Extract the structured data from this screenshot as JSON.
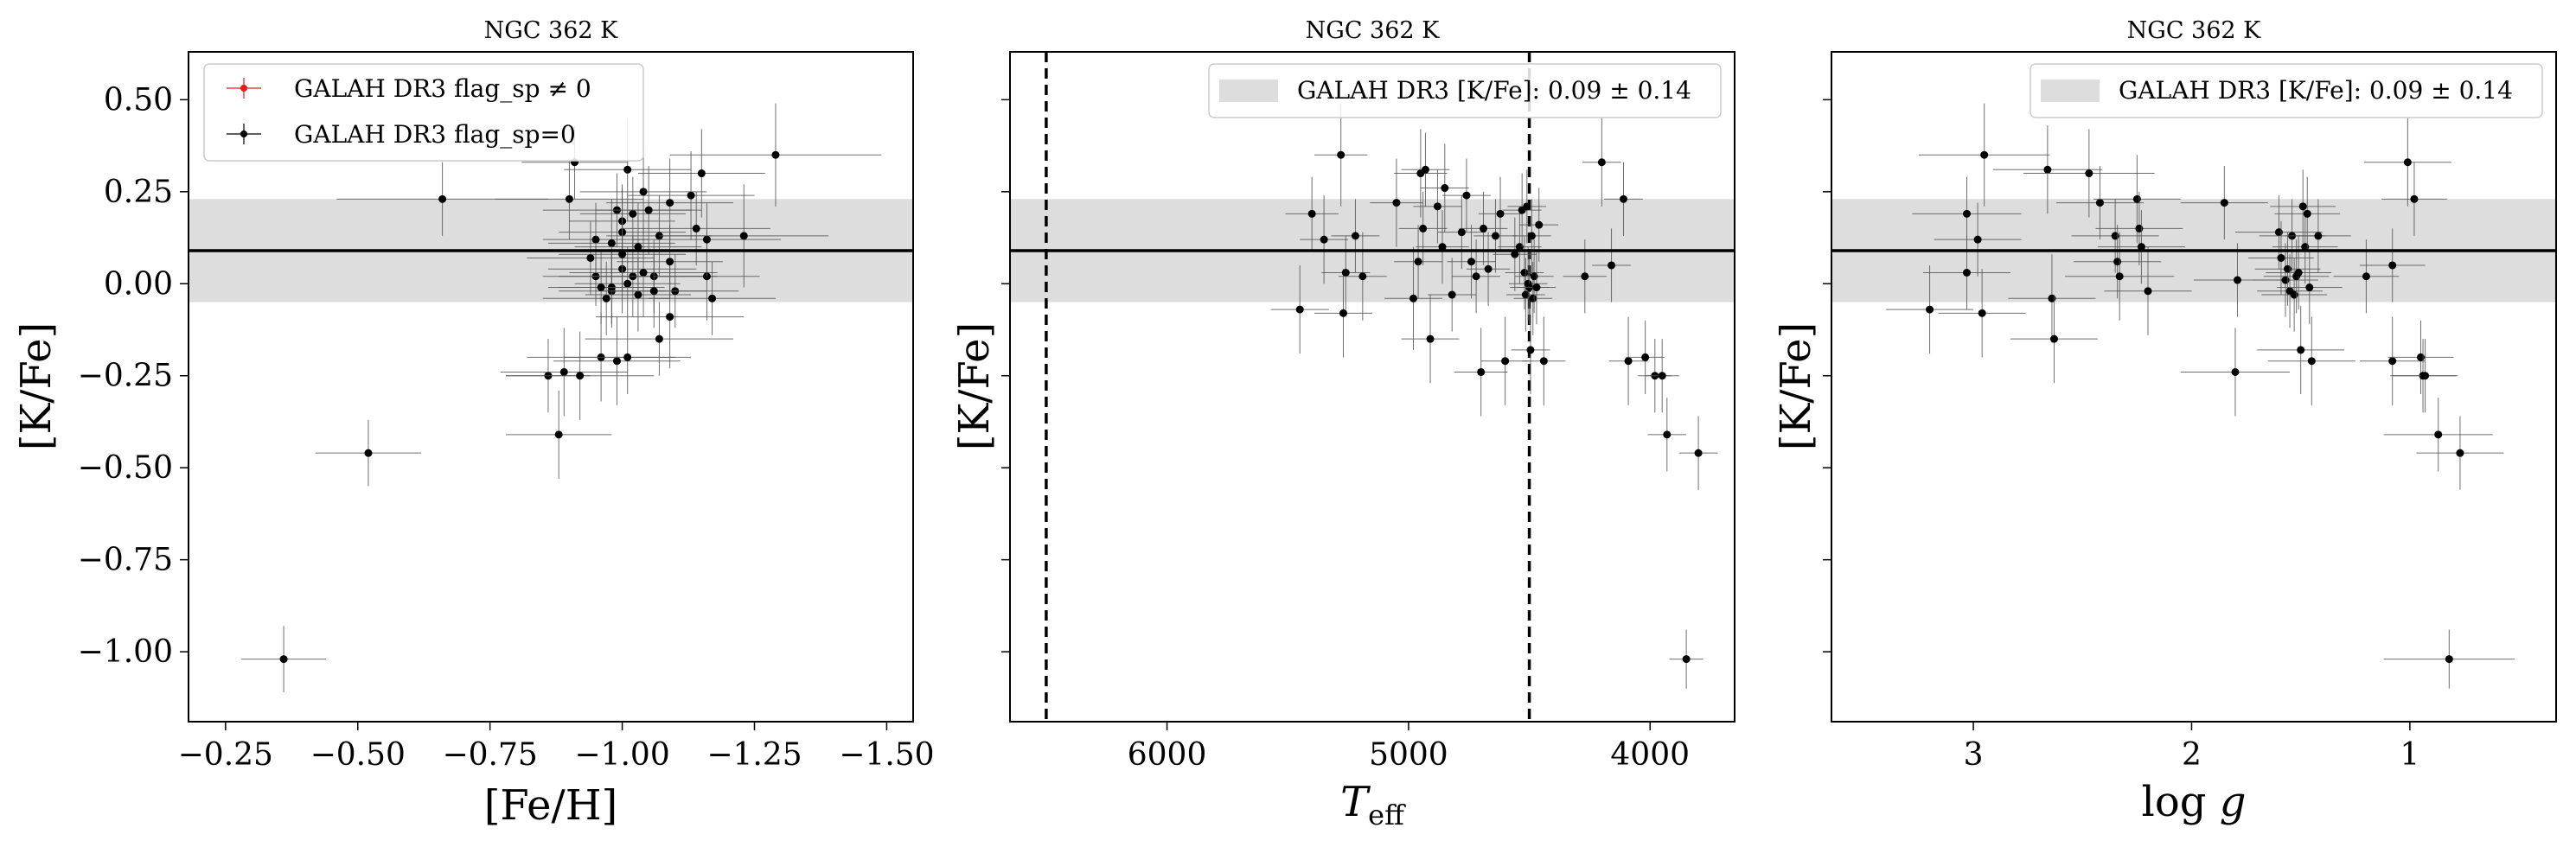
{
  "colors": {
    "band": "#dddddd",
    "points": "#000000",
    "flagged": "#e41a1c",
    "errorbar": "#555555",
    "frame": "#000000",
    "legend_edge": "#cccccc"
  },
  "legend": {
    "flagged_label": "GALAH DR3 flag_sp ≠ 0",
    "unflagged_label": "GALAH DR3 flag_sp=0",
    "band_label": "GALAH DR3 [K/Fe]: 0.09 ± 0.14"
  },
  "chart_data": [
    {
      "type": "scatter",
      "title": "NGC 362 K",
      "xlabel": "[Fe/H]",
      "ylabel": "[K/Fe]",
      "xlim": [
        -0.18,
        -1.55
      ],
      "ylim": [
        -1.19,
        0.63
      ],
      "xticks": [
        -0.25,
        -0.5,
        -0.75,
        -1.0,
        -1.25,
        -1.5
      ],
      "xtick_labels": [
        "−0.25",
        "−0.50",
        "−0.75",
        "−1.00",
        "−1.25",
        "−1.50"
      ],
      "yticks": [
        0.5,
        0.25,
        0.0,
        -0.25,
        -0.5,
        -0.75,
        -1.0
      ],
      "ytick_labels": [
        "0.50",
        "0.25",
        "0.00",
        "−0.25",
        "−0.50",
        "−0.75",
        "−1.00"
      ],
      "show_ytick_labels": true,
      "legend_entries": [
        "GALAH DR3 flag_sp ≠ 0",
        "GALAH DR3 flag_sp=0"
      ],
      "legend_position": "upper-left",
      "reference_line": 0.09,
      "reference_band": [
        -0.05,
        0.23
      ],
      "vlines": [],
      "series": [
        {
          "name": "GALAH DR3 flag_sp=0",
          "points": [
            [
              -0.36,
              -1.02,
              0.08,
              0.09
            ],
            [
              -0.52,
              -0.46,
              0.1,
              0.09
            ],
            [
              -0.66,
              0.23,
              0.2,
              0.1
            ],
            [
              -0.86,
              -0.25,
              0.08,
              0.1
            ],
            [
              -0.88,
              -0.41,
              0.1,
              0.12
            ],
            [
              -0.89,
              -0.24,
              0.12,
              0.12
            ],
            [
              -0.9,
              0.23,
              0.14,
              0.11
            ],
            [
              -0.91,
              0.33,
              0.1,
              0.1
            ],
            [
              -0.92,
              -0.25,
              0.14,
              0.12
            ],
            [
              -0.94,
              0.07,
              0.12,
              0.1
            ],
            [
              -0.95,
              0.12,
              0.1,
              0.1
            ],
            [
              -0.95,
              0.02,
              0.1,
              0.08
            ],
            [
              -0.96,
              -0.2,
              0.14,
              0.12
            ],
            [
              -0.97,
              -0.04,
              0.12,
              0.1
            ],
            [
              -0.98,
              -0.02,
              0.1,
              0.1
            ],
            [
              -0.98,
              0.11,
              0.12,
              0.12
            ],
            [
              -0.99,
              0.2,
              0.14,
              0.1
            ],
            [
              -0.99,
              -0.21,
              0.12,
              0.12
            ],
            [
              -1.0,
              0.17,
              0.1,
              0.1
            ],
            [
              -1.0,
              0.14,
              0.12,
              0.12
            ],
            [
              -1.0,
              0.04,
              0.14,
              0.12
            ],
            [
              -1.01,
              0.31,
              0.12,
              0.14
            ],
            [
              -1.01,
              0.0,
              0.1,
              0.1
            ],
            [
              -1.01,
              -0.2,
              0.12,
              0.1
            ],
            [
              -1.02,
              0.19,
              0.1,
              0.1
            ],
            [
              -1.02,
              0.02,
              0.14,
              0.11
            ],
            [
              -1.03,
              0.1,
              0.12,
              0.12
            ],
            [
              -1.03,
              -0.03,
              0.1,
              0.1
            ],
            [
              -1.04,
              0.03,
              0.14,
              0.12
            ],
            [
              -1.05,
              0.2,
              0.1,
              0.12
            ],
            [
              -1.06,
              0.02,
              0.12,
              0.1
            ],
            [
              -1.07,
              -0.15,
              0.14,
              0.1
            ],
            [
              -1.07,
              0.13,
              0.1,
              0.11
            ],
            [
              -1.09,
              0.22,
              0.12,
              0.12
            ],
            [
              -1.09,
              -0.09,
              0.14,
              0.14
            ],
            [
              -1.09,
              0.06,
              0.1,
              0.1
            ],
            [
              -1.1,
              -0.02,
              0.12,
              0.1
            ],
            [
              -1.13,
              0.24,
              0.12,
              0.12
            ],
            [
              -1.14,
              0.15,
              0.14,
              0.1
            ],
            [
              -1.15,
              0.3,
              0.12,
              0.12
            ],
            [
              -1.16,
              0.02,
              0.1,
              0.12
            ],
            [
              -1.16,
              0.12,
              0.14,
              0.1
            ],
            [
              -1.17,
              -0.04,
              0.12,
              0.1
            ],
            [
              -1.23,
              0.13,
              0.16,
              0.14
            ],
            [
              -1.29,
              0.35,
              0.2,
              0.14
            ],
            [
              -0.98,
              -0.01,
              0.1,
              0.1
            ],
            [
              -1.0,
              0.08,
              0.12,
              0.1
            ],
            [
              -1.04,
              0.25,
              0.12,
              0.12
            ],
            [
              -0.96,
              -0.01,
              0.1,
              0.1
            ],
            [
              -1.06,
              -0.02,
              0.1,
              0.1
            ]
          ]
        }
      ]
    },
    {
      "type": "scatter",
      "title": "NGC 362 K",
      "xlabel": "T_eff",
      "ylabel": "[K/Fe]",
      "xlim": [
        6650,
        3650
      ],
      "ylim": [
        -1.19,
        0.63
      ],
      "xticks": [
        6000,
        5000,
        4000
      ],
      "xtick_labels": [
        "6000",
        "5000",
        "4000"
      ],
      "yticks": [
        0.5,
        0.25,
        0.0,
        -0.25,
        -0.5,
        -0.75,
        -1.0
      ],
      "ytick_labels": [
        "",
        "",
        "",
        "",
        "",
        "",
        ""
      ],
      "show_ytick_labels": false,
      "legend_entries": [
        "GALAH DR3 [K/Fe]: 0.09 ± 0.14"
      ],
      "legend_position": "upper-right",
      "reference_line": 0.09,
      "reference_band": [
        -0.05,
        0.23
      ],
      "vlines": [
        6500,
        4500
      ],
      "series": [
        {
          "name": "GALAH DR3 flag_sp=0",
          "points": [
            [
              5450,
              -0.07,
              120,
              0.12
            ],
            [
              5400,
              0.19,
              110,
              0.1
            ],
            [
              5350,
              0.12,
              100,
              0.12
            ],
            [
              5280,
              0.35,
              110,
              0.14
            ],
            [
              5270,
              -0.08,
              120,
              0.12
            ],
            [
              5260,
              0.03,
              100,
              0.1
            ],
            [
              5220,
              0.13,
              100,
              0.1
            ],
            [
              5190,
              0.02,
              100,
              0.12
            ],
            [
              5050,
              0.22,
              110,
              0.12
            ],
            [
              4980,
              -0.04,
              120,
              0.14
            ],
            [
              4960,
              0.06,
              100,
              0.1
            ],
            [
              4950,
              0.3,
              110,
              0.12
            ],
            [
              4940,
              0.15,
              100,
              0.1
            ],
            [
              4930,
              0.31,
              100,
              0.1
            ],
            [
              4910,
              -0.15,
              120,
              0.12
            ],
            [
              4880,
              0.21,
              100,
              0.1
            ],
            [
              4860,
              0.1,
              110,
              0.1
            ],
            [
              4850,
              0.26,
              100,
              0.12
            ],
            [
              4820,
              -0.03,
              100,
              0.1
            ],
            [
              4780,
              0.14,
              100,
              0.1
            ],
            [
              4760,
              0.24,
              100,
              0.1
            ],
            [
              4740,
              0.06,
              100,
              0.1
            ],
            [
              4720,
              0.02,
              100,
              0.1
            ],
            [
              4700,
              -0.24,
              110,
              0.12
            ],
            [
              4690,
              0.15,
              100,
              0.1
            ],
            [
              4670,
              0.04,
              90,
              0.1
            ],
            [
              4640,
              0.13,
              90,
              0.1
            ],
            [
              4620,
              0.19,
              90,
              0.1
            ],
            [
              4600,
              -0.21,
              100,
              0.12
            ],
            [
              4560,
              0.08,
              90,
              0.1
            ],
            [
              4540,
              0.1,
              90,
              0.1
            ],
            [
              4530,
              0.2,
              80,
              0.1
            ],
            [
              4520,
              0.03,
              80,
              0.1
            ],
            [
              4515,
              -0.03,
              80,
              0.1
            ],
            [
              4510,
              0.21,
              80,
              0.1
            ],
            [
              4505,
              0.0,
              80,
              0.1
            ],
            [
              4500,
              -0.01,
              80,
              0.1
            ],
            [
              4495,
              -0.18,
              80,
              0.12
            ],
            [
              4490,
              0.13,
              80,
              0.1
            ],
            [
              4485,
              -0.04,
              80,
              0.1
            ],
            [
              4480,
              0.02,
              80,
              0.1
            ],
            [
              4470,
              -0.01,
              80,
              0.1
            ],
            [
              4460,
              0.16,
              80,
              0.1
            ],
            [
              4440,
              -0.21,
              90,
              0.12
            ],
            [
              4270,
              0.02,
              90,
              0.1
            ],
            [
              4200,
              0.33,
              80,
              0.12
            ],
            [
              4160,
              0.05,
              80,
              0.1
            ],
            [
              4110,
              0.23,
              80,
              0.1
            ],
            [
              4090,
              -0.21,
              80,
              0.12
            ],
            [
              4020,
              -0.2,
              80,
              0.1
            ],
            [
              3980,
              -0.25,
              70,
              0.1
            ],
            [
              3950,
              -0.25,
              70,
              0.1
            ],
            [
              3930,
              -0.41,
              80,
              0.1
            ],
            [
              3850,
              -1.02,
              70,
              0.08
            ],
            [
              3800,
              -0.46,
              80,
              0.1
            ]
          ]
        }
      ]
    },
    {
      "type": "scatter",
      "title": "NGC 362 K",
      "xlabel": "log g",
      "ylabel": "[K/Fe]",
      "xlim": [
        3.65,
        0.33
      ],
      "ylim": [
        -1.19,
        0.63
      ],
      "xticks": [
        3,
        2,
        1
      ],
      "xtick_labels": [
        "3",
        "2",
        "1"
      ],
      "yticks": [
        0.5,
        0.25,
        0.0,
        -0.25,
        -0.5,
        -0.75,
        -1.0
      ],
      "ytick_labels": [
        "",
        "",
        "",
        "",
        "",
        "",
        ""
      ],
      "show_ytick_labels": false,
      "legend_entries": [
        "GALAH DR3 [K/Fe]: 0.09 ± 0.14"
      ],
      "legend_position": "upper-right",
      "reference_line": 0.09,
      "reference_band": [
        -0.05,
        0.23
      ],
      "vlines": [],
      "series": [
        {
          "name": "GALAH DR3 flag_sp=0",
          "points": [
            [
              3.2,
              -0.07,
              0.2,
              0.12
            ],
            [
              3.03,
              0.03,
              0.2,
              0.1
            ],
            [
              3.03,
              0.19,
              0.25,
              0.1
            ],
            [
              2.98,
              0.12,
              0.2,
              0.1
            ],
            [
              2.96,
              -0.08,
              0.2,
              0.12
            ],
            [
              2.95,
              0.35,
              0.3,
              0.14
            ],
            [
              2.66,
              0.31,
              0.25,
              0.12
            ],
            [
              2.64,
              -0.04,
              0.2,
              0.12
            ],
            [
              2.63,
              -0.15,
              0.2,
              0.12
            ],
            [
              2.47,
              0.3,
              0.3,
              0.12
            ],
            [
              2.42,
              0.22,
              0.2,
              0.1
            ],
            [
              2.35,
              0.13,
              0.2,
              0.1
            ],
            [
              2.34,
              0.06,
              0.2,
              0.1
            ],
            [
              2.33,
              0.02,
              0.25,
              0.12
            ],
            [
              2.25,
              0.23,
              0.2,
              0.12
            ],
            [
              2.24,
              0.15,
              0.2,
              0.1
            ],
            [
              2.23,
              0.1,
              0.2,
              0.1
            ],
            [
              2.2,
              -0.02,
              0.2,
              0.12
            ],
            [
              1.85,
              0.22,
              0.2,
              0.1
            ],
            [
              1.8,
              -0.24,
              0.25,
              0.12
            ],
            [
              1.79,
              0.01,
              0.2,
              0.1
            ],
            [
              1.6,
              0.14,
              0.2,
              0.1
            ],
            [
              1.59,
              0.07,
              0.15,
              0.1
            ],
            [
              1.57,
              0.01,
              0.15,
              0.1
            ],
            [
              1.56,
              0.04,
              0.15,
              0.1
            ],
            [
              1.55,
              -0.02,
              0.15,
              0.1
            ],
            [
              1.54,
              0.13,
              0.15,
              0.1
            ],
            [
              1.53,
              -0.03,
              0.15,
              0.1
            ],
            [
              1.52,
              0.02,
              0.15,
              0.1
            ],
            [
              1.51,
              0.03,
              0.15,
              0.1
            ],
            [
              1.5,
              -0.18,
              0.2,
              0.12
            ],
            [
              1.49,
              0.21,
              0.15,
              0.1
            ],
            [
              1.48,
              0.1,
              0.15,
              0.1
            ],
            [
              1.47,
              0.19,
              0.15,
              0.1
            ],
            [
              1.46,
              -0.01,
              0.15,
              0.1
            ],
            [
              1.45,
              -0.21,
              0.2,
              0.12
            ],
            [
              1.42,
              0.13,
              0.15,
              0.1
            ],
            [
              1.2,
              0.02,
              0.15,
              0.1
            ],
            [
              1.08,
              0.05,
              0.15,
              0.1
            ],
            [
              1.08,
              -0.21,
              0.15,
              0.12
            ],
            [
              1.01,
              0.33,
              0.2,
              0.12
            ],
            [
              0.98,
              0.23,
              0.15,
              0.1
            ],
            [
              0.95,
              -0.2,
              0.15,
              0.1
            ],
            [
              0.94,
              -0.25,
              0.15,
              0.1
            ],
            [
              0.93,
              -0.25,
              0.15,
              0.1
            ],
            [
              0.87,
              -0.41,
              0.25,
              0.1
            ],
            [
              0.82,
              -1.02,
              0.3,
              0.08
            ],
            [
              0.77,
              -0.46,
              0.2,
              0.1
            ]
          ]
        }
      ]
    }
  ]
}
